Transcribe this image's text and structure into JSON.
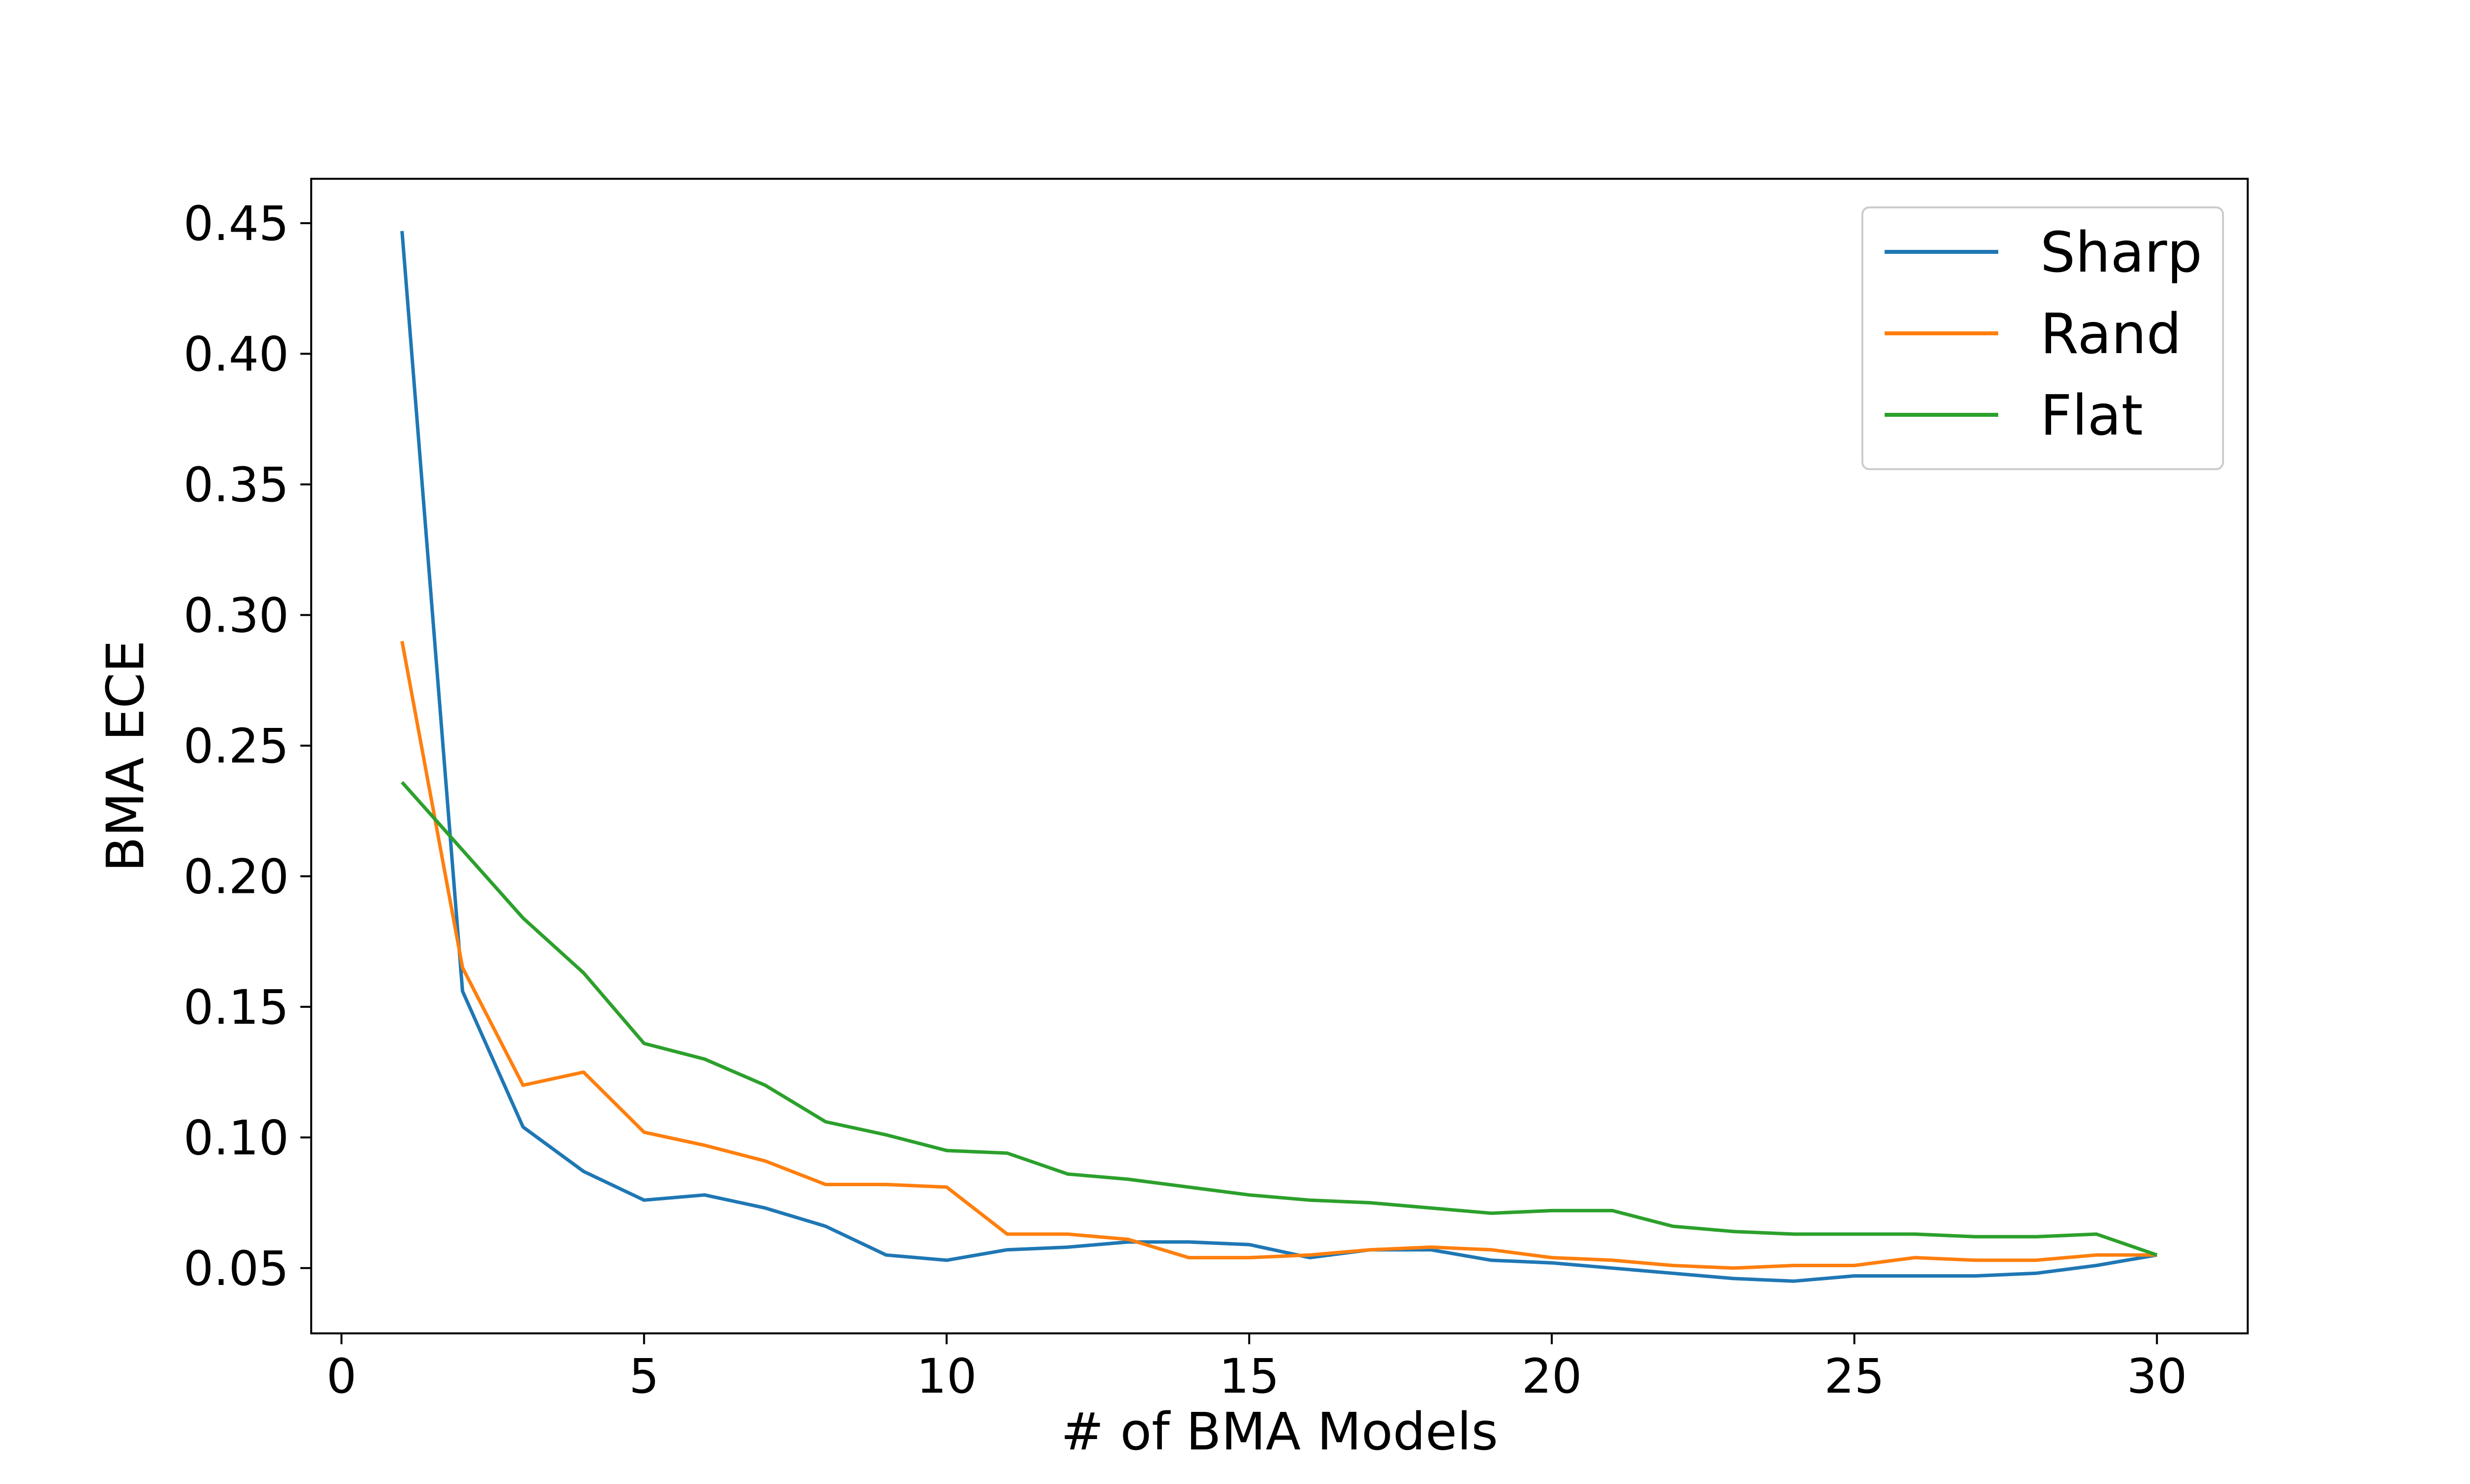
{
  "chart_data": {
    "type": "line",
    "title": "",
    "xlabel": "# of BMA Models",
    "ylabel": "BMA ECE",
    "xlim": [
      -0.5,
      31.5
    ],
    "ylim": [
      0.025,
      0.467
    ],
    "xticks": [
      0,
      5,
      10,
      15,
      20,
      25,
      30
    ],
    "xtick_labels": [
      "0",
      "5",
      "10",
      "15",
      "20",
      "25",
      "30"
    ],
    "yticks": [
      0.05,
      0.1,
      0.15,
      0.2,
      0.25,
      0.3,
      0.35,
      0.4,
      0.45
    ],
    "ytick_labels": [
      "0.05",
      "0.10",
      "0.15",
      "0.20",
      "0.25",
      "0.30",
      "0.35",
      "0.40",
      "0.45"
    ],
    "grid": false,
    "legend_position": "top-right",
    "x": [
      1,
      2,
      3,
      4,
      5,
      6,
      7,
      8,
      9,
      10,
      11,
      12,
      13,
      14,
      15,
      16,
      17,
      18,
      19,
      20,
      21,
      22,
      23,
      24,
      25,
      26,
      27,
      28,
      29,
      30
    ],
    "series": [
      {
        "name": "Sharp",
        "color": "#1f77b4",
        "values": [
          0.447,
          0.156,
          0.104,
          0.087,
          0.076,
          0.078,
          0.073,
          0.066,
          0.055,
          0.053,
          0.057,
          0.058,
          0.06,
          0.06,
          0.059,
          0.054,
          0.057,
          0.057,
          0.053,
          0.052,
          0.05,
          0.048,
          0.046,
          0.045,
          0.047,
          0.047,
          0.047,
          0.048,
          0.051,
          0.055
        ]
      },
      {
        "name": "Rand",
        "color": "#ff7f0e",
        "values": [
          0.29,
          0.165,
          0.12,
          0.125,
          0.102,
          0.097,
          0.091,
          0.082,
          0.082,
          0.081,
          0.063,
          0.063,
          0.061,
          0.054,
          0.054,
          0.055,
          0.057,
          0.058,
          0.057,
          0.054,
          0.053,
          0.051,
          0.05,
          0.051,
          0.051,
          0.054,
          0.053,
          0.053,
          0.055,
          0.055
        ]
      },
      {
        "name": "Flat",
        "color": "#2ca02c",
        "values": [
          0.236,
          0.21,
          0.184,
          0.163,
          0.136,
          0.13,
          0.12,
          0.106,
          0.101,
          0.095,
          0.094,
          0.086,
          0.084,
          0.081,
          0.078,
          0.076,
          0.075,
          0.073,
          0.071,
          0.072,
          0.072,
          0.066,
          0.064,
          0.063,
          0.063,
          0.063,
          0.062,
          0.062,
          0.063,
          0.055
        ]
      }
    ]
  }
}
